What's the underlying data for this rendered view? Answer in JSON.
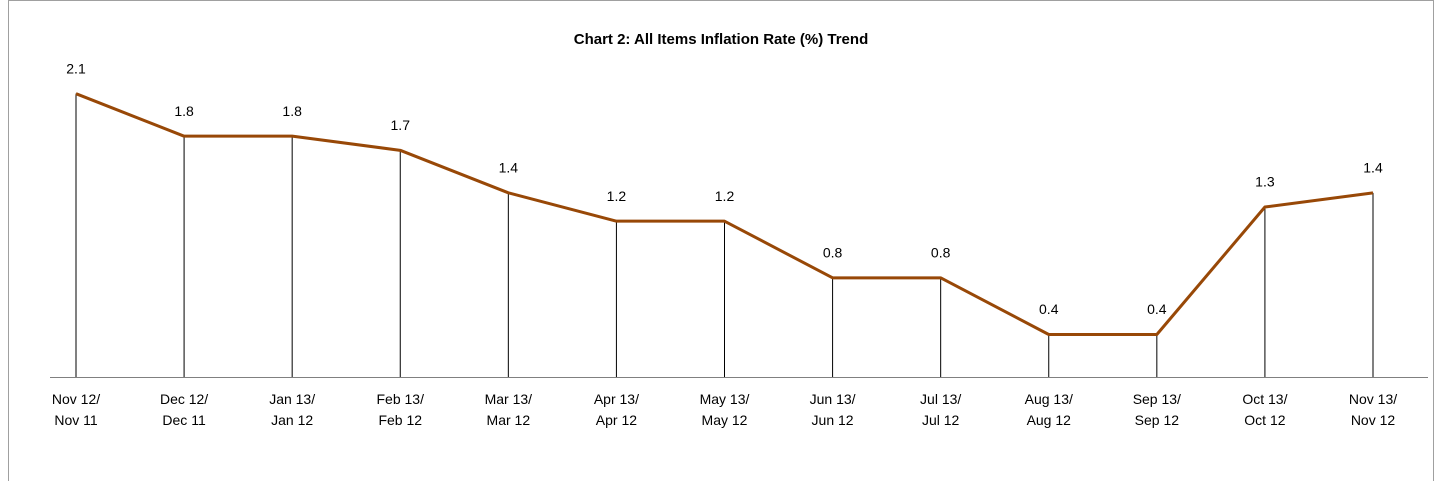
{
  "chart_data": {
    "type": "line",
    "title": "Chart 2: All Items Inflation Rate (%) Trend",
    "categories": [
      "Nov 12/\nNov 11",
      "Dec 12/\nDec 11",
      "Jan 13/\nJan 12",
      "Feb 13/\nFeb 12",
      "Mar 13/\nMar 12",
      "Apr 13/\nApr 12",
      "May 13/\nMay 12",
      "Jun 13/\nJun 12",
      "Jul 13/\nJul 12",
      "Aug 13/\nAug 12",
      "Sep 13/\nSep 12",
      "Oct 13/\nOct 12",
      "Nov 13/\nNov 12"
    ],
    "values": [
      2.1,
      1.8,
      1.8,
      1.7,
      1.4,
      1.2,
      1.2,
      0.8,
      0.8,
      0.4,
      0.4,
      1.3,
      1.4
    ],
    "color": "#984807",
    "ylim": [
      0.1,
      2.5
    ],
    "drop_lines": true
  }
}
